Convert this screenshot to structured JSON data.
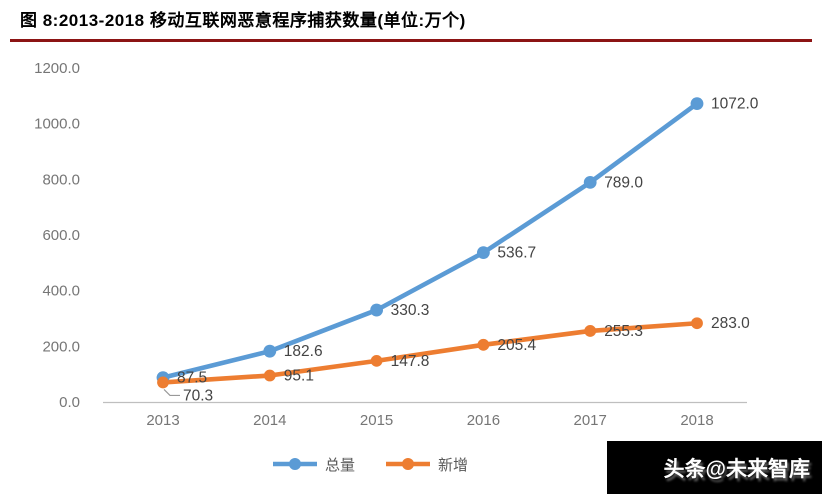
{
  "title": "图 8:2013-2018 移动互联网恶意程序捕获数量(单位:万个)",
  "watermark": "头条@未来智库",
  "colors": {
    "series_total": "#5B9BD5",
    "series_new": "#ED7D31",
    "title_rule": "#8C1414",
    "axis_line": "#BFBFBF",
    "tick_text": "#767676",
    "data_label_text": "#444444",
    "legend_text": "#595959",
    "watermark_bg": "#000000",
    "watermark_text": "#ffffff"
  },
  "chart_data": {
    "type": "line",
    "categories": [
      "2013",
      "2014",
      "2015",
      "2016",
      "2017",
      "2018"
    ],
    "series": [
      {
        "name": "总量",
        "color": "#5B9BD5",
        "values": [
          87.5,
          182.6,
          330.3,
          536.7,
          789.0,
          1072.0
        ]
      },
      {
        "name": "新增",
        "color": "#ED7D31",
        "values": [
          70.3,
          95.1,
          147.8,
          205.4,
          255.3,
          283.0
        ]
      }
    ],
    "title": "2013-2018 移动互联网恶意程序捕获数量",
    "unit": "万个",
    "xlabel": "",
    "ylabel": "",
    "ylim": [
      0,
      1200
    ],
    "ytick_step": 200,
    "ytick_labels": [
      "0.0",
      "200.0",
      "400.0",
      "600.0",
      "800.0",
      "1000.0",
      "1200.0"
    ],
    "grid": false,
    "legend_position": "bottom",
    "data_labels": true
  }
}
